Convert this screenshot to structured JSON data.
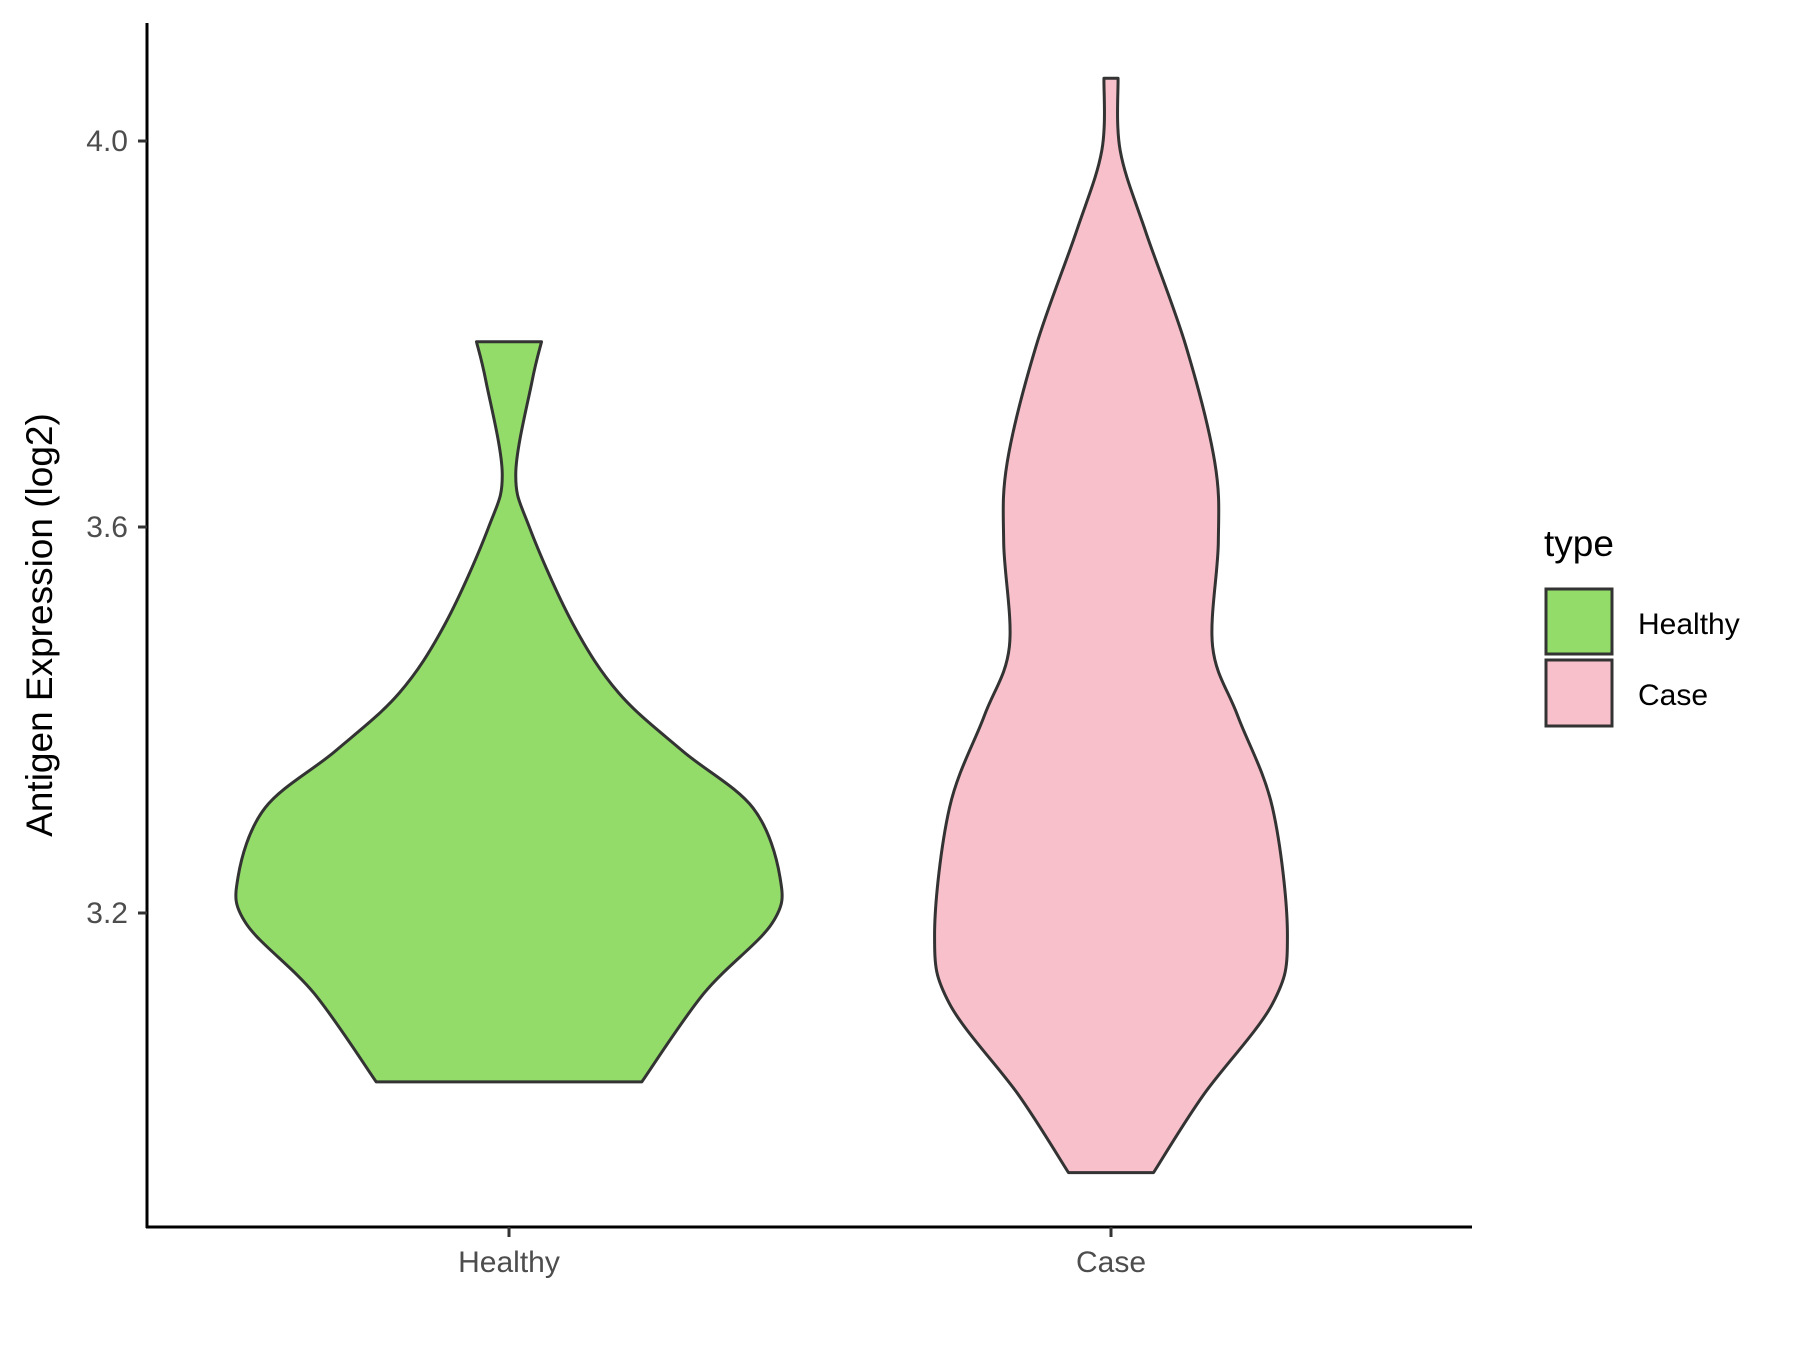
{
  "chart_data": {
    "type": "violin",
    "title": "",
    "xlabel": "",
    "ylabel": "Antigen Expression (log2)",
    "categories": [
      "Healthy",
      "Case"
    ],
    "yticks": [
      3.2,
      3.6,
      4.0
    ],
    "ytick_labels": [
      "3.2",
      "3.6",
      "4.0"
    ],
    "ylim": [
      2.88,
      4.12
    ],
    "grid": false,
    "legend": {
      "title": "type",
      "placement": "right",
      "entries": [
        "Healthy",
        "Case"
      ]
    },
    "colors": {
      "Healthy": "#93DC6A",
      "Case": "#F8C0CB",
      "outline": "#333333"
    },
    "series": [
      {
        "name": "Healthy",
        "range": [
          3.025,
          3.792
        ],
        "density_profile": [
          [
            3.792,
            0.12
          ],
          [
            3.751,
            0.085
          ],
          [
            3.656,
            0.025
          ],
          [
            3.6,
            0.075
          ],
          [
            3.5,
            0.235
          ],
          [
            3.428,
            0.405
          ],
          [
            3.368,
            0.64
          ],
          [
            3.309,
            0.9
          ],
          [
            3.237,
            1.0
          ],
          [
            3.189,
            0.97
          ],
          [
            3.117,
            0.72
          ],
          [
            3.025,
            0.49
          ]
        ]
      },
      {
        "name": "Case",
        "range": [
          2.931,
          4.065
        ],
        "density_profile": [
          [
            4.065,
            0.026
          ],
          [
            3.99,
            0.034
          ],
          [
            3.906,
            0.128
          ],
          [
            3.787,
            0.277
          ],
          [
            3.667,
            0.383
          ],
          [
            3.584,
            0.396
          ],
          [
            3.476,
            0.375
          ],
          [
            3.404,
            0.468
          ],
          [
            3.309,
            0.596
          ],
          [
            3.177,
            0.651
          ],
          [
            3.106,
            0.596
          ],
          [
            3.011,
            0.34
          ],
          [
            2.931,
            0.157
          ]
        ]
      }
    ]
  }
}
